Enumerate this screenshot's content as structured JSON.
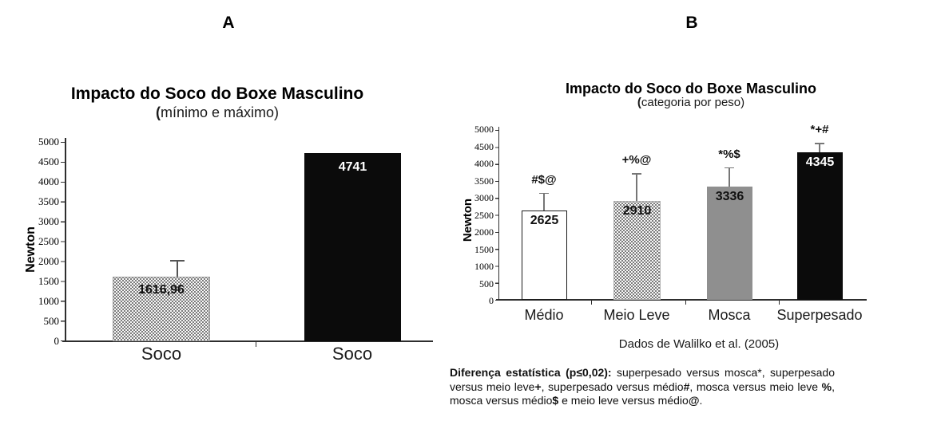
{
  "panels": {
    "a_label": "A",
    "b_label": "B"
  },
  "chart_a": {
    "title": "Impacto do Soco do Boxe Masculino",
    "subtitle_open": "(",
    "subtitle_rest": "mínimo e máximo)",
    "y_axis_label": "Newton",
    "y_ticks": [
      "5000",
      "4500",
      "4000",
      "3500",
      "3000",
      "2500",
      "2000",
      "1500",
      "1000",
      "500",
      "0"
    ],
    "bars": [
      {
        "category": "Soco",
        "value_label": "1616,96",
        "value": 1616.96,
        "error_top": 2048,
        "style": "dotted"
      },
      {
        "category": "Soco",
        "value_label": "4741",
        "value": 4741,
        "error_top": null,
        "style": "black"
      }
    ]
  },
  "chart_b": {
    "title": "Impacto do Soco do Boxe Masculino",
    "subtitle_open": "(",
    "subtitle_rest": "categoria por peso)",
    "y_axis_label": "Newton",
    "y_ticks": [
      "5000",
      "4500",
      "4000",
      "3500",
      "3000",
      "2500",
      "2000",
      "1500",
      "1000",
      "500",
      "0"
    ],
    "bars": [
      {
        "category": "Médio",
        "value_label": "2625",
        "value": 2625,
        "error_top": 3150,
        "annotation": "#$@",
        "style": "white"
      },
      {
        "category": "Meio Leve",
        "value_label": "2910",
        "value": 2910,
        "error_top": 3730,
        "annotation": "+%@",
        "style": "dotted"
      },
      {
        "category": "Mosca",
        "value_label": "3336",
        "value": 3336,
        "error_top": 3900,
        "annotation": "*%$",
        "style": "gray"
      },
      {
        "category": "Superpesado",
        "value_label": "4345",
        "value": 4345,
        "error_top": 4625,
        "annotation": "*+#",
        "style": "black"
      }
    ],
    "source_note": "Dados de Walilko et al. (2005)"
  },
  "stat_note": {
    "segments": [
      {
        "t": "Diferença estatística (p≤0,02):",
        "b": true
      },
      {
        "t": " superpesado versus mosca*, superpesado versus meio leve",
        "b": false
      },
      {
        "t": "+",
        "b": true
      },
      {
        "t": ", superpesado versus médio",
        "b": false
      },
      {
        "t": "#",
        "b": true
      },
      {
        "t": ", mosca versus meio leve ",
        "b": false
      },
      {
        "t": "%",
        "b": true
      },
      {
        "t": ", mosca versus médio",
        "b": false
      },
      {
        "t": "$",
        "b": true
      },
      {
        "t": " e meio leve versus médio",
        "b": false
      },
      {
        "t": "@",
        "b": true
      },
      {
        "t": ".",
        "b": false
      }
    ]
  },
  "colors": {
    "bar_gray": "#8f8f8f",
    "bar_black": "#0b0b0b",
    "error_gray": "#767676",
    "axis": "#2e2e2e"
  },
  "chart_data": [
    {
      "panel": "A",
      "type": "bar",
      "title": "Impacto do Soco do Boxe Masculino",
      "subtitle": "(mínimo e máximo)",
      "xlabel": "",
      "ylabel": "Newton",
      "ylim": [
        0,
        5000
      ],
      "ytick_step": 500,
      "grid": false,
      "categories": [
        "Soco",
        "Soco"
      ],
      "values": [
        1616.96,
        4741
      ],
      "value_labels": [
        "1616,96",
        "4741"
      ],
      "error_bar_upper_top": [
        2048,
        null
      ],
      "bar_fills": [
        "dotted-pattern",
        "solid-black"
      ]
    },
    {
      "panel": "B",
      "type": "bar",
      "title": "Impacto do Soco do Boxe Masculino",
      "subtitle": "(categoria por peso)",
      "xlabel": "",
      "ylabel": "Newton",
      "ylim": [
        0,
        5000
      ],
      "ytick_step": 500,
      "grid": false,
      "categories": [
        "Médio",
        "Meio Leve",
        "Mosca",
        "Superpesado"
      ],
      "values": [
        2625,
        2910,
        3336,
        4345
      ],
      "value_labels": [
        "2625",
        "2910",
        "3336",
        "4345"
      ],
      "error_bar_upper_top": [
        3150,
        3730,
        3900,
        4625
      ],
      "significance_annotations": [
        "#$@",
        "+%@",
        "*%$",
        "*+#"
      ],
      "bar_fills": [
        "white",
        "dotted-pattern",
        "solid-gray",
        "solid-black"
      ],
      "source": "Dados de Walilko et al. (2005)"
    }
  ]
}
